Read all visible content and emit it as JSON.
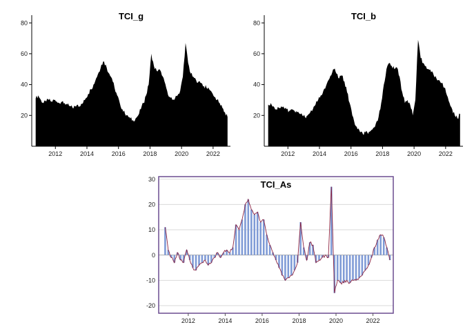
{
  "chart_data": [
    {
      "type": "area",
      "title": "TCI_g",
      "x_start": 2010.75,
      "x_step": 0.166667,
      "xlim": [
        2010.5,
        2023.1
      ],
      "ylim": [
        0,
        85
      ],
      "yticks": [
        20,
        40,
        60,
        80
      ],
      "xticks": [
        2012,
        2014,
        2016,
        2018,
        2020,
        2022
      ],
      "fill_color": "#000000",
      "values": [
        31,
        33,
        30,
        28,
        29,
        30,
        29,
        30,
        29,
        28,
        29,
        28,
        27,
        26,
        25,
        26,
        27,
        26,
        28,
        31,
        34,
        37,
        40,
        44,
        48,
        53,
        55,
        51,
        47,
        44,
        38,
        33,
        28,
        24,
        21,
        20,
        18,
        17,
        18,
        20,
        24,
        28,
        33,
        40,
        60,
        52,
        49,
        50,
        46,
        42,
        36,
        32,
        30,
        31,
        33,
        36,
        45,
        67,
        54,
        47,
        45,
        43,
        42,
        41,
        39,
        38,
        37,
        35,
        32,
        30,
        28,
        25,
        22,
        19
      ]
    },
    {
      "type": "area",
      "title": "TCI_b",
      "x_start": 2010.75,
      "x_step": 0.166667,
      "xlim": [
        2010.5,
        2023.1
      ],
      "ylim": [
        0,
        85
      ],
      "yticks": [
        20,
        40,
        60,
        80
      ],
      "xticks": [
        2012,
        2014,
        2016,
        2018,
        2020,
        2022
      ],
      "fill_color": "#000000",
      "values": [
        27,
        28,
        26,
        24,
        25,
        26,
        25,
        24,
        23,
        24,
        23,
        22,
        21,
        20,
        19,
        20,
        22,
        24,
        27,
        30,
        33,
        36,
        39,
        43,
        46,
        50,
        47,
        44,
        46,
        42,
        35,
        28,
        20,
        14,
        11,
        9,
        8,
        9,
        8,
        10,
        12,
        15,
        19,
        28,
        40,
        50,
        54,
        52,
        50,
        51,
        45,
        35,
        28,
        30,
        27,
        20,
        30,
        69,
        57,
        54,
        52,
        50,
        48,
        46,
        44,
        43,
        41,
        38,
        33,
        28,
        24,
        20,
        18,
        21
      ]
    },
    {
      "type": "bar-line",
      "title": "TCI_As",
      "x_start": 2010.75,
      "x_step": 0.166667,
      "xlim": [
        2010.4,
        2023.1
      ],
      "ylim": [
        -23,
        31
      ],
      "yticks": [
        -20,
        -10,
        0,
        10,
        20,
        30
      ],
      "xticks": [
        2012,
        2014,
        2016,
        2018,
        2020,
        2022
      ],
      "bar_color": "#7f9bd6",
      "line_color": "#8b2240",
      "border_color": "#6a4b8f",
      "grid_color": "#d9d9d9",
      "zero_line_color": "#a8a8a8",
      "values": [
        11,
        2,
        -1,
        -3,
        1,
        -2,
        -3,
        2,
        -2,
        -5,
        -6,
        -4,
        -3,
        -2,
        -4,
        -3,
        -1,
        1,
        -1,
        1,
        2,
        1,
        3,
        12,
        10,
        14,
        20,
        22,
        18,
        16,
        17,
        13,
        14,
        8,
        4,
        1,
        -2,
        -5,
        -8,
        -10,
        -9,
        -8,
        -6,
        -3,
        13,
        3,
        -2,
        5,
        4,
        -3,
        -2,
        -1,
        0,
        -1,
        27,
        -15,
        -10,
        -11,
        -11,
        -10,
        -11,
        -10,
        -10,
        -9,
        -8,
        -6,
        -4,
        -1,
        3,
        6,
        8,
        7,
        3,
        -2
      ]
    }
  ]
}
